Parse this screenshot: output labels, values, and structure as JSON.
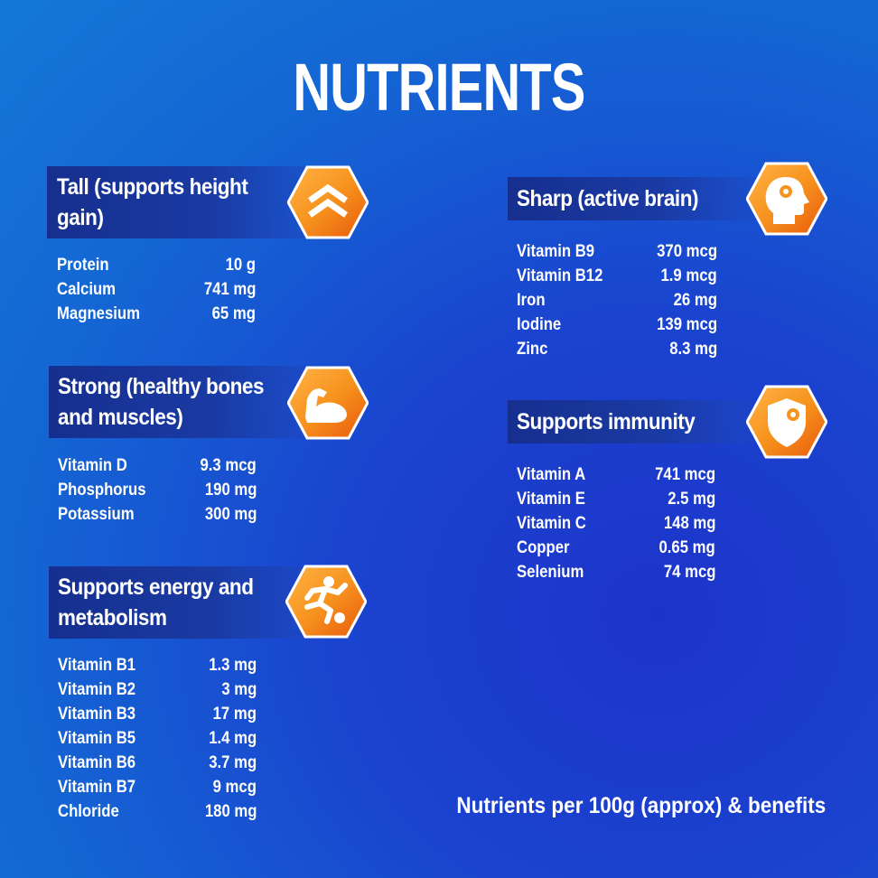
{
  "title": "NUTRIENTS",
  "footer": "Nutrients per 100g (approx) & benefits",
  "colors": {
    "accent": "#f7931e",
    "accent_dark": "#e8590c",
    "banner": "#162f8f",
    "background": "#1a44cf"
  },
  "sections": [
    {
      "title": "Tall (supports height gain)",
      "icon": "chevrons-up-icon",
      "items": [
        {
          "name": "Protein",
          "value": "10 g"
        },
        {
          "name": "Calcium",
          "value": "741 mg"
        },
        {
          "name": "Magnesium",
          "value": "65 mg"
        }
      ]
    },
    {
      "title": "Strong (healthy bones and muscles)",
      "icon": "flexed-arm-icon",
      "items": [
        {
          "name": "Vitamin D",
          "value": "9.3 mcg"
        },
        {
          "name": "Phosphorus",
          "value": "190 mg"
        },
        {
          "name": "Potassium",
          "value": "300 mg"
        }
      ]
    },
    {
      "title": "Supports energy and metabolism",
      "icon": "running-player-icon",
      "items": [
        {
          "name": "Vitamin B1",
          "value": "1.3 mg"
        },
        {
          "name": "Vitamin B2",
          "value": "3 mg"
        },
        {
          "name": "Vitamin B3",
          "value": "17 mg"
        },
        {
          "name": "Vitamin B5",
          "value": "1.4 mg"
        },
        {
          "name": "Vitamin B6",
          "value": "3.7 mg"
        },
        {
          "name": "Vitamin B7",
          "value": "9 mcg"
        },
        {
          "name": "Chloride",
          "value": "180 mg"
        }
      ]
    },
    {
      "title": "Sharp (active brain)",
      "icon": "brain-head-icon",
      "items": [
        {
          "name": "Vitamin B9",
          "value": "370 mcg"
        },
        {
          "name": "Vitamin B12",
          "value": "1.9 mcg"
        },
        {
          "name": "Iron",
          "value": "26 mg"
        },
        {
          "name": "Iodine",
          "value": "139 mcg"
        },
        {
          "name": "Zinc",
          "value": "8.3 mg"
        }
      ]
    },
    {
      "title": "Supports immunity",
      "icon": "shield-virus-icon",
      "items": [
        {
          "name": "Vitamin A",
          "value": "741 mcg"
        },
        {
          "name": "Vitamin E",
          "value": "2.5 mg"
        },
        {
          "name": "Vitamin C",
          "value": "148 mg"
        },
        {
          "name": "Copper",
          "value": "0.65 mg"
        },
        {
          "name": "Selenium",
          "value": "74 mcg"
        }
      ]
    }
  ]
}
